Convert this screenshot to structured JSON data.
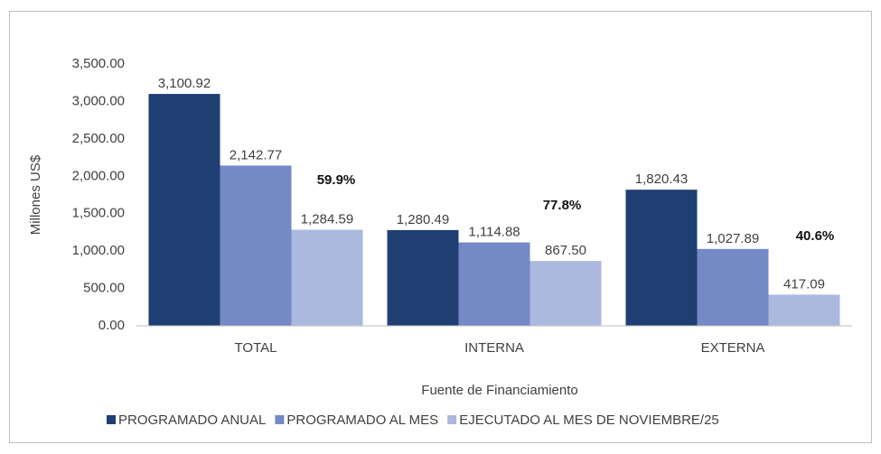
{
  "chart_data": {
    "type": "bar",
    "x_label": "Fuente de Financiamiento",
    "y_label": "Millones US$",
    "categories": [
      "TOTAL",
      "INTERNA",
      "EXTERNA"
    ],
    "series": [
      {
        "name": "PROGRAMADO ANUAL",
        "color": "#1f3f73",
        "values": [
          3100.92,
          1280.49,
          1820.43
        ],
        "value_labels": [
          "3,100.92",
          "1,280.49",
          "1,820.43"
        ]
      },
      {
        "name": "PROGRAMADO AL MES",
        "color": "#7489c5",
        "values": [
          2142.77,
          1114.88,
          1027.89
        ],
        "value_labels": [
          "2,142.77",
          "1,114.88",
          "1,027.89"
        ]
      },
      {
        "name": "EJECUTADO AL MES DE NOVIEMBRE/25",
        "color": "#abb9df",
        "values": [
          1284.59,
          867.5,
          417.09
        ],
        "value_labels": [
          "1,284.59",
          "867.50",
          "417.09"
        ]
      }
    ],
    "annotations": [
      "59.9%",
      "77.8%",
      "40.6%"
    ],
    "ylim": [
      0,
      3500
    ],
    "yticks": [
      {
        "value": 0,
        "label": "0.00"
      },
      {
        "value": 500,
        "label": "500.00"
      },
      {
        "value": 1000,
        "label": "1,000.00"
      },
      {
        "value": 1500,
        "label": "1,500.00"
      },
      {
        "value": 2000,
        "label": "2,000.00"
      },
      {
        "value": 2500,
        "label": "2,500.00"
      },
      {
        "value": 3000,
        "label": "3,000.00"
      },
      {
        "value": 3500,
        "label": "3,500.00"
      }
    ],
    "grid": false,
    "legend": "bottom"
  }
}
